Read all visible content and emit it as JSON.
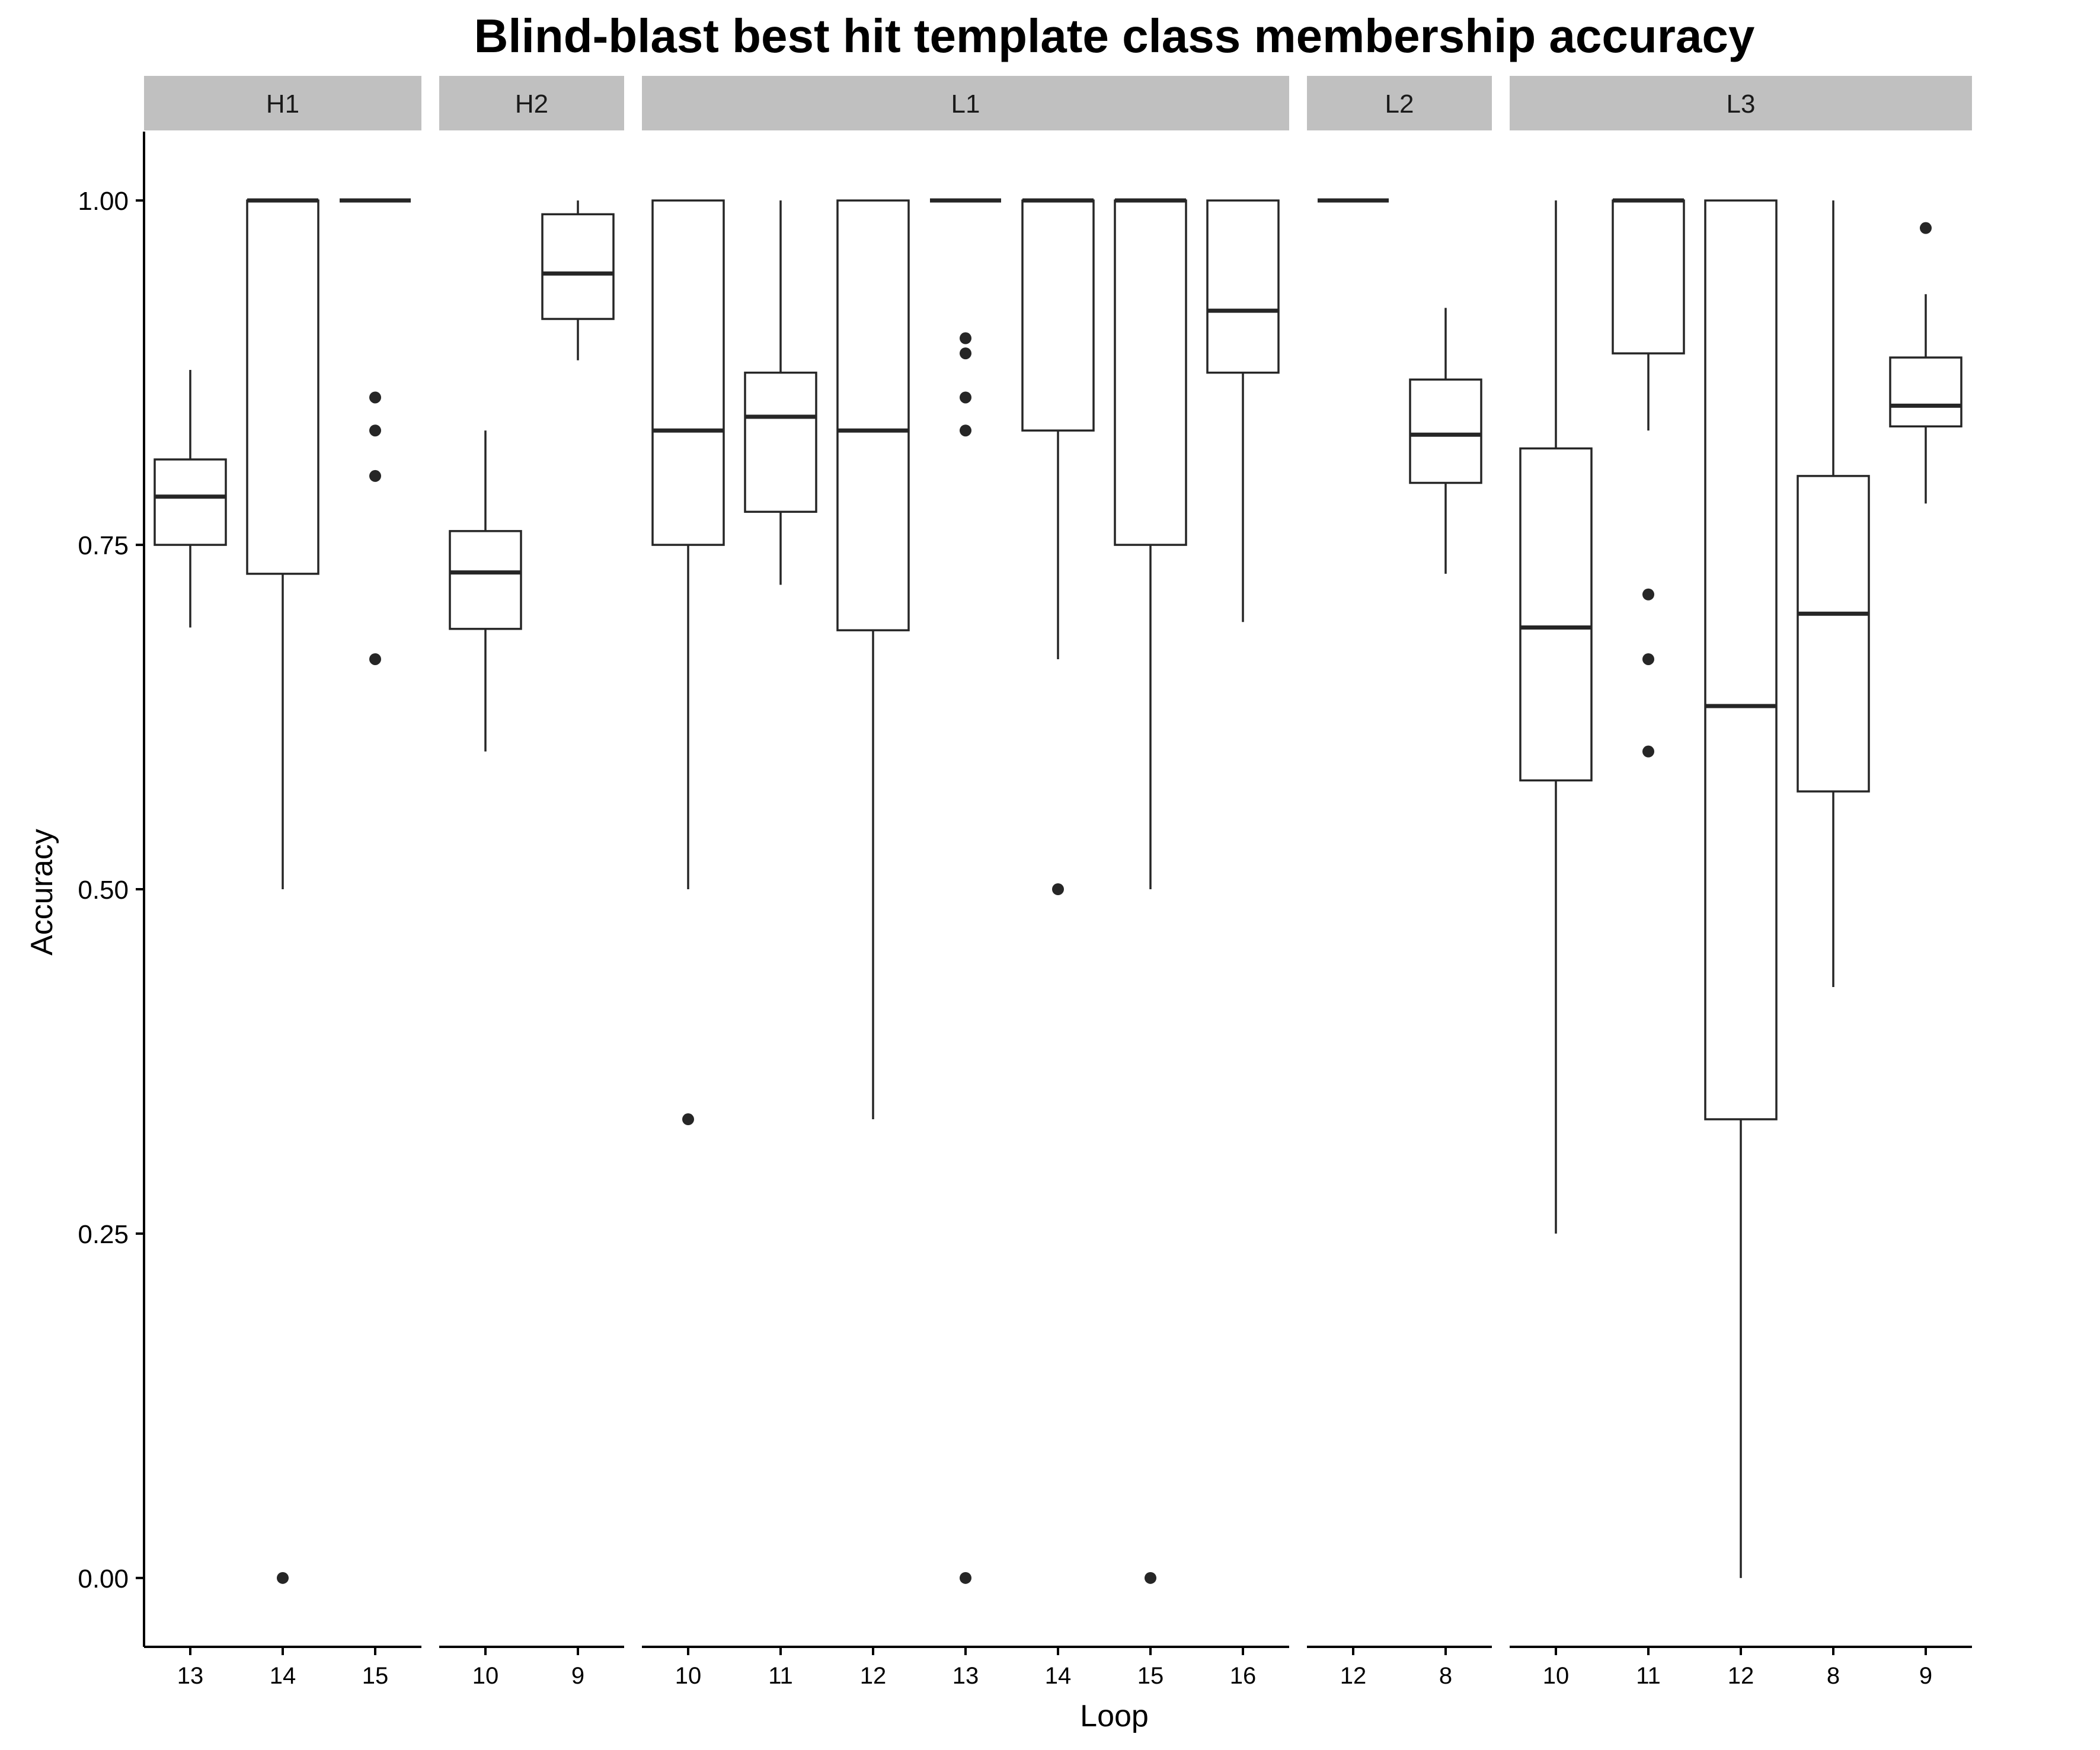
{
  "chart_data": {
    "type": "boxplot",
    "title": "Blind-blast best hit template class membership accuracy",
    "xlabel": "Loop",
    "ylabel": "Accuracy",
    "ylim": [
      -0.05,
      1.05
    ],
    "yticks": [
      0.0,
      0.25,
      0.5,
      0.75,
      1.0
    ],
    "ytick_labels": [
      "0.00",
      "0.25",
      "0.50",
      "0.75",
      "1.00"
    ],
    "grid": false,
    "facets": [
      {
        "label": "H1",
        "boxes": [
          {
            "x": "13",
            "lower_whisker": 0.69,
            "q1": 0.75,
            "median": 0.785,
            "q3": 0.812,
            "upper_whisker": 0.877,
            "outliers": []
          },
          {
            "x": "14",
            "lower_whisker": 0.5,
            "q1": 0.729,
            "median": 1.0,
            "q3": 1.0,
            "upper_whisker": 1.0,
            "outliers": [
              0.0
            ]
          },
          {
            "x": "15",
            "lower_whisker": 1.0,
            "q1": 1.0,
            "median": 1.0,
            "q3": 1.0,
            "upper_whisker": 1.0,
            "outliers": [
              0.857,
              0.833,
              0.8,
              0.667
            ]
          }
        ]
      },
      {
        "label": "H2",
        "boxes": [
          {
            "x": "10",
            "lower_whisker": 0.6,
            "q1": 0.689,
            "median": 0.73,
            "q3": 0.76,
            "upper_whisker": 0.833,
            "outliers": []
          },
          {
            "x": "9",
            "lower_whisker": 0.884,
            "q1": 0.914,
            "median": 0.947,
            "q3": 0.99,
            "upper_whisker": 1.0,
            "outliers": []
          }
        ]
      },
      {
        "label": "L1",
        "boxes": [
          {
            "x": "10",
            "lower_whisker": 0.5,
            "q1": 0.75,
            "median": 0.833,
            "q3": 1.0,
            "upper_whisker": 1.0,
            "outliers": [
              0.333
            ]
          },
          {
            "x": "11",
            "lower_whisker": 0.721,
            "q1": 0.774,
            "median": 0.843,
            "q3": 0.875,
            "upper_whisker": 1.0,
            "outliers": []
          },
          {
            "x": "12",
            "lower_whisker": 0.333,
            "q1": 0.688,
            "median": 0.833,
            "q3": 1.0,
            "upper_whisker": 1.0,
            "outliers": []
          },
          {
            "x": "13",
            "lower_whisker": 1.0,
            "q1": 1.0,
            "median": 1.0,
            "q3": 1.0,
            "upper_whisker": 1.0,
            "outliers": [
              0.9,
              0.889,
              0.857,
              0.833,
              0.0
            ]
          },
          {
            "x": "14",
            "lower_whisker": 0.667,
            "q1": 0.833,
            "median": 1.0,
            "q3": 1.0,
            "upper_whisker": 1.0,
            "outliers": [
              0.5
            ]
          },
          {
            "x": "15",
            "lower_whisker": 0.5,
            "q1": 0.75,
            "median": 1.0,
            "q3": 1.0,
            "upper_whisker": 1.0,
            "outliers": [
              0.0
            ]
          },
          {
            "x": "16",
            "lower_whisker": 0.694,
            "q1": 0.875,
            "median": 0.92,
            "q3": 1.0,
            "upper_whisker": 1.0,
            "outliers": []
          }
        ]
      },
      {
        "label": "L2",
        "boxes": [
          {
            "x": "12",
            "lower_whisker": 1.0,
            "q1": 1.0,
            "median": 1.0,
            "q3": 1.0,
            "upper_whisker": 1.0,
            "outliers": []
          },
          {
            "x": "8",
            "lower_whisker": 0.729,
            "q1": 0.795,
            "median": 0.83,
            "q3": 0.87,
            "upper_whisker": 0.922,
            "outliers": []
          }
        ]
      },
      {
        "label": "L3",
        "boxes": [
          {
            "x": "10",
            "lower_whisker": 0.25,
            "q1": 0.579,
            "median": 0.69,
            "q3": 0.82,
            "upper_whisker": 1.0,
            "outliers": []
          },
          {
            "x": "11",
            "lower_whisker": 0.833,
            "q1": 0.889,
            "median": 1.0,
            "q3": 1.0,
            "upper_whisker": 1.0,
            "outliers": [
              0.714,
              0.667,
              0.6
            ]
          },
          {
            "x": "12",
            "lower_whisker": 0.0,
            "q1": 0.333,
            "median": 0.633,
            "q3": 1.0,
            "upper_whisker": 1.0,
            "outliers": []
          },
          {
            "x": "8",
            "lower_whisker": 0.429,
            "q1": 0.571,
            "median": 0.7,
            "q3": 0.8,
            "upper_whisker": 1.0,
            "outliers": []
          },
          {
            "x": "9",
            "lower_whisker": 0.78,
            "q1": 0.836,
            "median": 0.851,
            "q3": 0.886,
            "upper_whisker": 0.932,
            "outliers": [
              0.98
            ]
          }
        ]
      }
    ]
  },
  "colors": {
    "strip_fill": "#c0c0c0",
    "box_line": "#262626",
    "median_line": "#262626",
    "outlier": "#262626",
    "axis_line": "#000000"
  }
}
